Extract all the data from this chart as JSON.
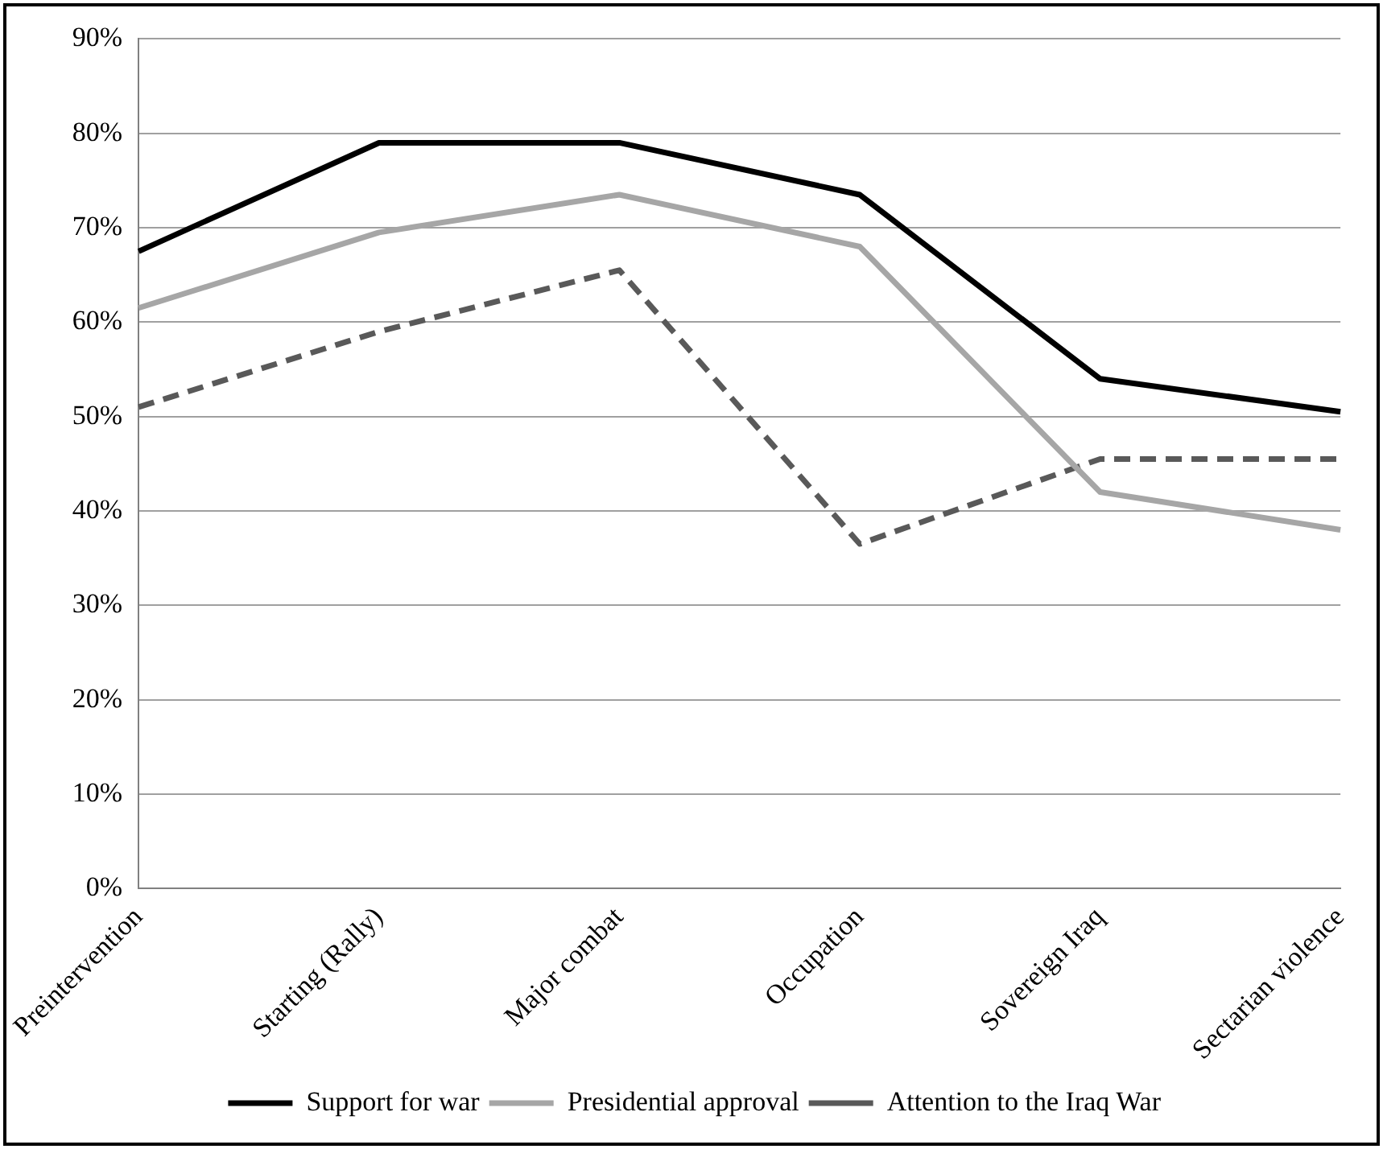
{
  "chart_data": {
    "type": "line",
    "categories": [
      "Preintervention",
      "Starting (Rally)",
      "Major combat",
      "Occupation",
      "Sovereign Iraq",
      "Sectarian violence"
    ],
    "series": [
      {
        "name": "Support for war",
        "color": "#000000",
        "line_style": "solid",
        "values": [
          67.5,
          79,
          79,
          73.5,
          54,
          50.5
        ]
      },
      {
        "name": "Presidential approval",
        "color": "#a6a6a6",
        "line_style": "solid",
        "values": [
          61.5,
          69.5,
          73.5,
          68,
          42,
          38
        ]
      },
      {
        "name": "Attention to the Iraq War",
        "color": "#595959",
        "line_style": "dashed",
        "values": [
          51,
          59,
          65.5,
          36.5,
          45.5,
          45.5
        ]
      }
    ],
    "ylim": [
      0,
      90
    ],
    "yticks": [
      {
        "value": 0,
        "label": "0%"
      },
      {
        "value": 10,
        "label": "10%"
      },
      {
        "value": 20,
        "label": "20%"
      },
      {
        "value": 30,
        "label": "30%"
      },
      {
        "value": 40,
        "label": "40%"
      },
      {
        "value": 50,
        "label": "50%"
      },
      {
        "value": 60,
        "label": "60%"
      },
      {
        "value": 70,
        "label": "70%"
      },
      {
        "value": 80,
        "label": "80%"
      },
      {
        "value": 90,
        "label": "90%"
      }
    ],
    "grid": "y",
    "legend": "bottom",
    "marker": "none"
  }
}
